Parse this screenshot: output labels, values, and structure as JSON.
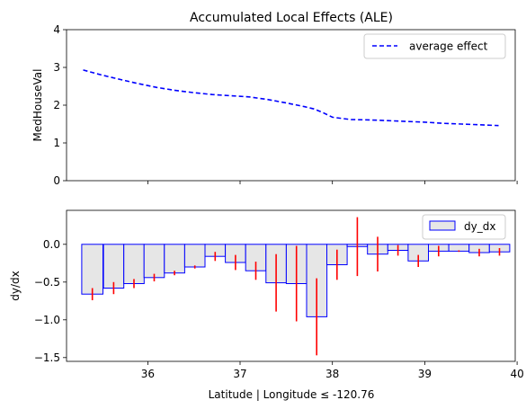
{
  "chart_data": [
    {
      "type": "line",
      "title": "Accumulated Local Effects (ALE)",
      "ylabel": "MedHouseVal",
      "xlabel": "",
      "ylim": [
        0,
        4
      ],
      "xlim": [
        35.12,
        39.98
      ],
      "yticks": [
        0,
        1,
        2,
        3,
        4
      ],
      "xticks": [
        36,
        37,
        38,
        39,
        40
      ],
      "xtick_labels_visible": false,
      "legend_position": "top-right",
      "grid": false,
      "series": [
        {
          "name": "average effect",
          "color": "#0000ff",
          "style": "dashed",
          "x": [
            35.3,
            35.5,
            35.7,
            35.9,
            36.1,
            36.3,
            36.5,
            36.7,
            36.9,
            37.1,
            37.3,
            37.5,
            37.7,
            37.8,
            37.9,
            38.0,
            38.2,
            38.4,
            38.6,
            38.8,
            39.0,
            39.2,
            39.4,
            39.6,
            39.8
          ],
          "y": [
            2.93,
            2.8,
            2.68,
            2.57,
            2.47,
            2.39,
            2.33,
            2.28,
            2.25,
            2.22,
            2.15,
            2.06,
            1.96,
            1.9,
            1.8,
            1.68,
            1.62,
            1.61,
            1.59,
            1.57,
            1.55,
            1.52,
            1.5,
            1.48,
            1.46
          ]
        }
      ]
    },
    {
      "type": "bar",
      "title": "",
      "ylabel": "dy/dx",
      "xlabel": "Latitude | Longitude ≤ -120.76",
      "ylim": [
        -1.55,
        0.45
      ],
      "xlim": [
        35.12,
        39.98
      ],
      "yticks": [
        -1.5,
        -1.0,
        -0.5,
        0.0
      ],
      "ytick_labels": [
        "−1.5",
        "−1.0",
        "−0.5",
        "0.0"
      ],
      "xticks": [
        36,
        37,
        38,
        39,
        40
      ],
      "xtick_labels": [
        "36",
        "37",
        "38",
        "39",
        "40"
      ],
      "legend_position": "top-right",
      "grid": false,
      "bar_fill": "#e6e6e6",
      "bar_edge": "#0000ff",
      "error_color": "#ff0000",
      "series": [
        {
          "name": "dy_dx",
          "x": [
            35.4,
            35.63,
            35.85,
            36.07,
            36.29,
            36.51,
            36.73,
            36.95,
            37.17,
            37.39,
            37.61,
            37.83,
            38.05,
            38.27,
            38.49,
            38.71,
            38.93,
            39.15,
            39.37,
            39.59,
            39.81
          ],
          "width": [
            0.23,
            0.22,
            0.22,
            0.22,
            0.22,
            0.22,
            0.22,
            0.22,
            0.22,
            0.22,
            0.22,
            0.22,
            0.22,
            0.22,
            0.22,
            0.22,
            0.22,
            0.22,
            0.22,
            0.22,
            0.22
          ],
          "values": [
            -0.66,
            -0.58,
            -0.52,
            -0.44,
            -0.38,
            -0.3,
            -0.16,
            -0.24,
            -0.35,
            -0.51,
            -0.52,
            -0.96,
            -0.27,
            -0.03,
            -0.13,
            -0.08,
            -0.22,
            -0.09,
            -0.09,
            -0.11,
            -0.1
          ],
          "errors": [
            0.08,
            0.08,
            0.06,
            0.05,
            0.03,
            0.02,
            0.06,
            0.1,
            0.12,
            0.38,
            0.5,
            0.51,
            0.2,
            0.39,
            0.23,
            0.07,
            0.08,
            0.07,
            0.01,
            0.05,
            0.05
          ]
        }
      ]
    }
  ]
}
